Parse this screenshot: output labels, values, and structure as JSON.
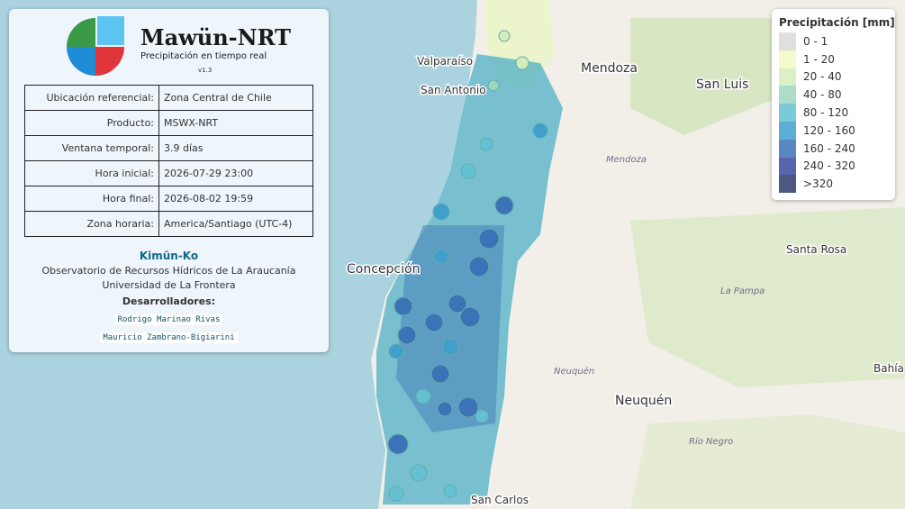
{
  "info_panel": {
    "title": "Mawün-NRT",
    "subtitle": "Precipitación en tiempo real",
    "version": "v1.3",
    "table": {
      "rows": [
        [
          "Ubicación referencial:",
          "Zona Central de Chile"
        ],
        [
          "Producto:",
          "MSWX-NRT"
        ],
        [
          "Ventana temporal:",
          "3.9 días"
        ],
        [
          "Hora inicial:",
          "2026-07-29 23:00"
        ],
        [
          "Hora final:",
          "2026-08-02 19:59"
        ],
        [
          "Zona horaria:",
          "America/Santiago (UTC-4)"
        ]
      ]
    },
    "org": "Kimün-Ko",
    "org_lines": [
      "Observatorio de Recursos Hídricos de La Araucanía",
      "Universidad de La Frontera"
    ],
    "developers_title": "Desarrolladores:",
    "developers": [
      "Rodrigo Marinao Rivas",
      "Mauricio Zambrano-Bigiarini"
    ]
  },
  "legend": {
    "title": "Precipitación [mm]",
    "items": [
      {
        "label": "0 - 1",
        "color": "#d9d9d9"
      },
      {
        "label": "1 - 20",
        "color": "#f3f9c4"
      },
      {
        "label": "20 - 40",
        "color": "#d5edbd"
      },
      {
        "label": "40 - 80",
        "color": "#9fd6c0"
      },
      {
        "label": "80 - 120",
        "color": "#63c1d3"
      },
      {
        "label": "120 - 160",
        "color": "#3fa0cc"
      },
      {
        "label": "160 - 240",
        "color": "#3b73b6"
      },
      {
        "label": "240 - 320",
        "color": "#3a4a9e"
      },
      {
        "label": ">320",
        "color": "#2b3b6b"
      }
    ]
  },
  "map_labels": {
    "cities": [
      "Mendoza",
      "Valparaíso",
      "San Antonio",
      "San Luis",
      "Santa Rosa",
      "Concepción",
      "Neuquén",
      "San Carlos",
      "Bahía Bl"
    ],
    "regions": [
      "Mendoza",
      "La Pampa",
      "Neuquén",
      "Río Negro"
    ]
  }
}
